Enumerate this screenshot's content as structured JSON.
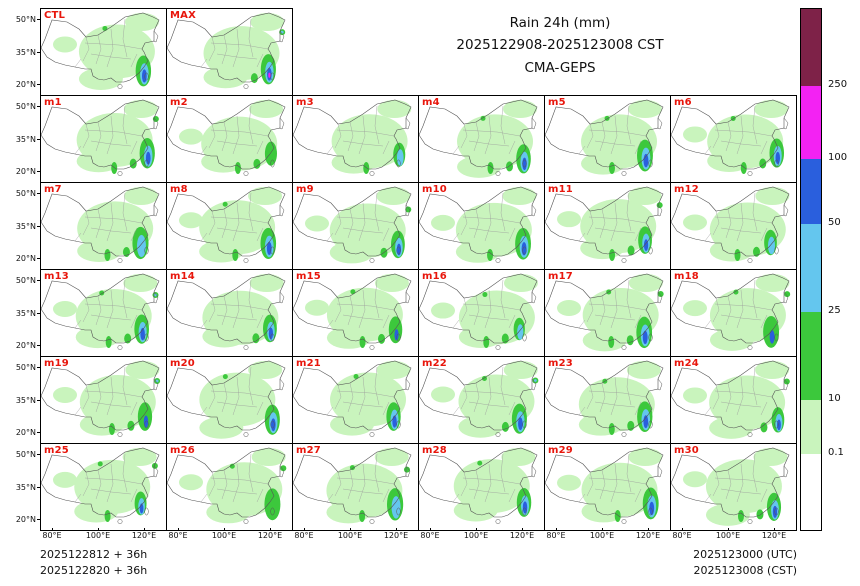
{
  "title": {
    "line1": "Rain 24h (mm)",
    "line2": "2025122908-2025123008 CST",
    "line3": "CMA-GEPS"
  },
  "panels": [
    "CTL",
    "MAX",
    "m1",
    "m2",
    "m3",
    "m4",
    "m5",
    "m6",
    "m7",
    "m8",
    "m9",
    "m10",
    "m11",
    "m12",
    "m13",
    "m14",
    "m15",
    "m16",
    "m17",
    "m18",
    "m19",
    "m20",
    "m21",
    "m22",
    "m23",
    "m24",
    "m25",
    "m26",
    "m27",
    "m28",
    "m29",
    "m30"
  ],
  "panel_label_color": "#e8160c",
  "axes": {
    "lat": [
      "50°N",
      "35°N",
      "20°N"
    ],
    "lon": [
      "80°E",
      "100°E",
      "120°E"
    ]
  },
  "colorbar": {
    "labels": [
      "250",
      "100",
      "50",
      "25",
      "10",
      "0.1"
    ]
  },
  "footer": {
    "left": [
      "2025122812 + 36h",
      "2025122820 + 36h"
    ],
    "right": [
      "2025123000 (UTC)",
      "2025123008 (CST)"
    ]
  },
  "chart_data": {
    "type": "heatmap",
    "title": "Rain 24h (mm)",
    "valid_period": "2025122908-2025123008 CST",
    "model": "CMA-GEPS",
    "ensemble_panels": [
      "CTL",
      "MAX",
      "m1",
      "m2",
      "m3",
      "m4",
      "m5",
      "m6",
      "m7",
      "m8",
      "m9",
      "m10",
      "m11",
      "m12",
      "m13",
      "m14",
      "m15",
      "m16",
      "m17",
      "m18",
      "m19",
      "m20",
      "m21",
      "m22",
      "m23",
      "m24",
      "m25",
      "m26",
      "m27",
      "m28",
      "m29",
      "m30"
    ],
    "colorbar": {
      "units": "mm",
      "levels": [
        0.1,
        10,
        25,
        50,
        100,
        250
      ],
      "colors": [
        "#ffffff",
        "#c9f4bd",
        "#3cc83c",
        "#64c6ee",
        "#2a5fdd",
        "#f322f3",
        "#7e2248"
      ]
    },
    "x_ticks": [
      "80°E",
      "100°E",
      "120°E"
    ],
    "y_ticks": [
      "50°N",
      "35°N",
      "20°N"
    ],
    "map_region": "China (approx 75°E-130°E, 15°N-55°N)",
    "init_runs": [
      "2025122812 + 36h",
      "2025122820 + 36h"
    ],
    "valid_times": [
      "2025123000 (UTC)",
      "2025123008 (CST)"
    ]
  }
}
